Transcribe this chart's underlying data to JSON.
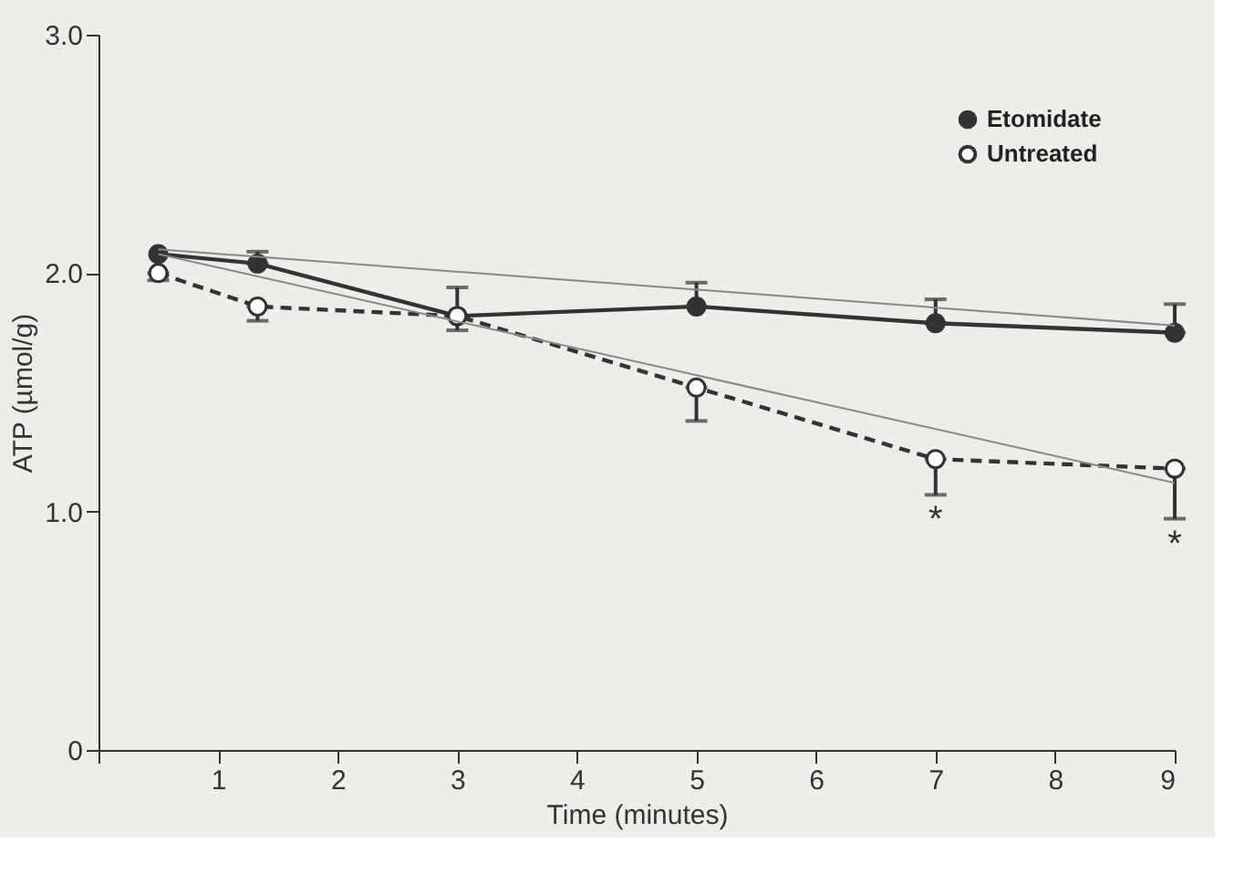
{
  "chart_data": {
    "type": "line",
    "xlabel": "Time (minutes)",
    "ylabel": "ATP (µmol/g)",
    "xlim": [
      0,
      9
    ],
    "xticks": [
      {
        "value": 0,
        "label": null
      },
      1,
      2,
      3,
      4,
      5,
      6,
      7,
      8,
      9
    ],
    "ylim": [
      0,
      3
    ],
    "yticks": [
      {
        "value": 0,
        "label": "0"
      },
      {
        "value": 1,
        "label": "1.0"
      },
      {
        "value": 2,
        "label": "2.0"
      },
      {
        "value": 3,
        "label": "3.0"
      }
    ],
    "grid": false,
    "legend": "top right",
    "marker": "circle",
    "series": [
      {
        "name": "Etomidate",
        "color": "#333333",
        "line_style": "solid",
        "x": [
          0.5,
          1.33,
          3,
          5,
          7,
          9
        ],
        "values": [
          2.08,
          2.04,
          1.82,
          1.86,
          1.79,
          1.75
        ],
        "errors": [
          null,
          [
            2.04,
            2.09
          ],
          [
            1.82,
            1.94
          ],
          [
            1.86,
            1.96
          ],
          [
            1.79,
            1.89
          ],
          [
            1.75,
            1.87
          ]
        ]
      },
      {
        "name": "Untreated",
        "color": "#333333",
        "line_style": "dashed",
        "x": [
          0.5,
          1.33,
          3,
          5,
          7,
          9
        ],
        "values": [
          2.0,
          1.86,
          1.82,
          1.52,
          1.22,
          1.18
        ],
        "errors": [
          [
            1.97,
            2.0
          ],
          [
            1.8,
            1.86
          ],
          [
            1.76,
            1.82
          ],
          [
            1.38,
            1.52
          ],
          [
            1.07,
            1.22
          ],
          [
            0.97,
            1.18
          ]
        ]
      },
      {
        "type": "line",
        "color": "#888888",
        "marker": "none",
        "line_style": "solid",
        "x": [
          0.5,
          9
        ],
        "values": [
          2.1,
          1.78
        ]
      },
      {
        "type": "line",
        "color": "#888888",
        "marker": "none",
        "line_style": "solid",
        "x": [
          0.5,
          9
        ],
        "values": [
          2.08,
          1.12
        ]
      }
    ],
    "annotations": [
      "*",
      "*"
    ]
  }
}
